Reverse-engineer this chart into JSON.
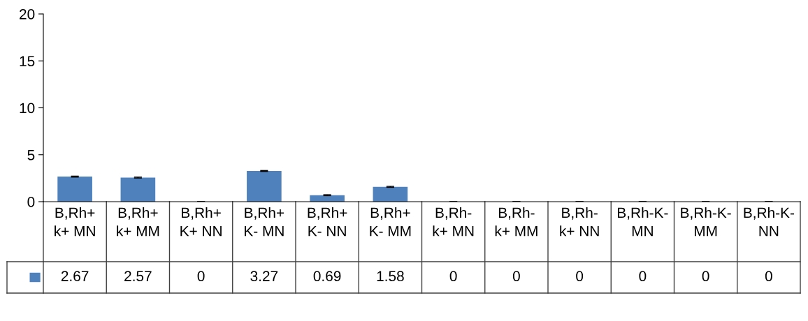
{
  "chart_data": {
    "type": "bar",
    "categories": [
      "B,Rh+ k+ MN",
      "B,Rh+ k+ MM",
      "B,Rh+ K+ NN",
      "B,Rh+ K- MN",
      "B,Rh+ K- NN",
      "B,Rh+ K- MM",
      "B,Rh- k+ MN",
      "B,Rh- k+ MM",
      "B,Rh- k+ NN",
      "B,Rh-K- MN",
      "B,Rh-K- MM",
      "B,Rh-K- NN"
    ],
    "series": [
      {
        "color": "#4f81bd",
        "values": [
          2.67,
          2.57,
          0,
          3.27,
          0.69,
          1.58,
          0,
          0,
          0,
          0,
          0,
          0
        ],
        "errors": [
          0.05,
          0.05,
          0,
          0.05,
          0.05,
          0.05,
          0,
          0,
          0,
          0,
          0,
          0
        ]
      }
    ],
    "ylim": [
      0,
      20
    ],
    "yticks": [
      0,
      5,
      10,
      15,
      20
    ],
    "grid": false,
    "data_labels": true
  }
}
